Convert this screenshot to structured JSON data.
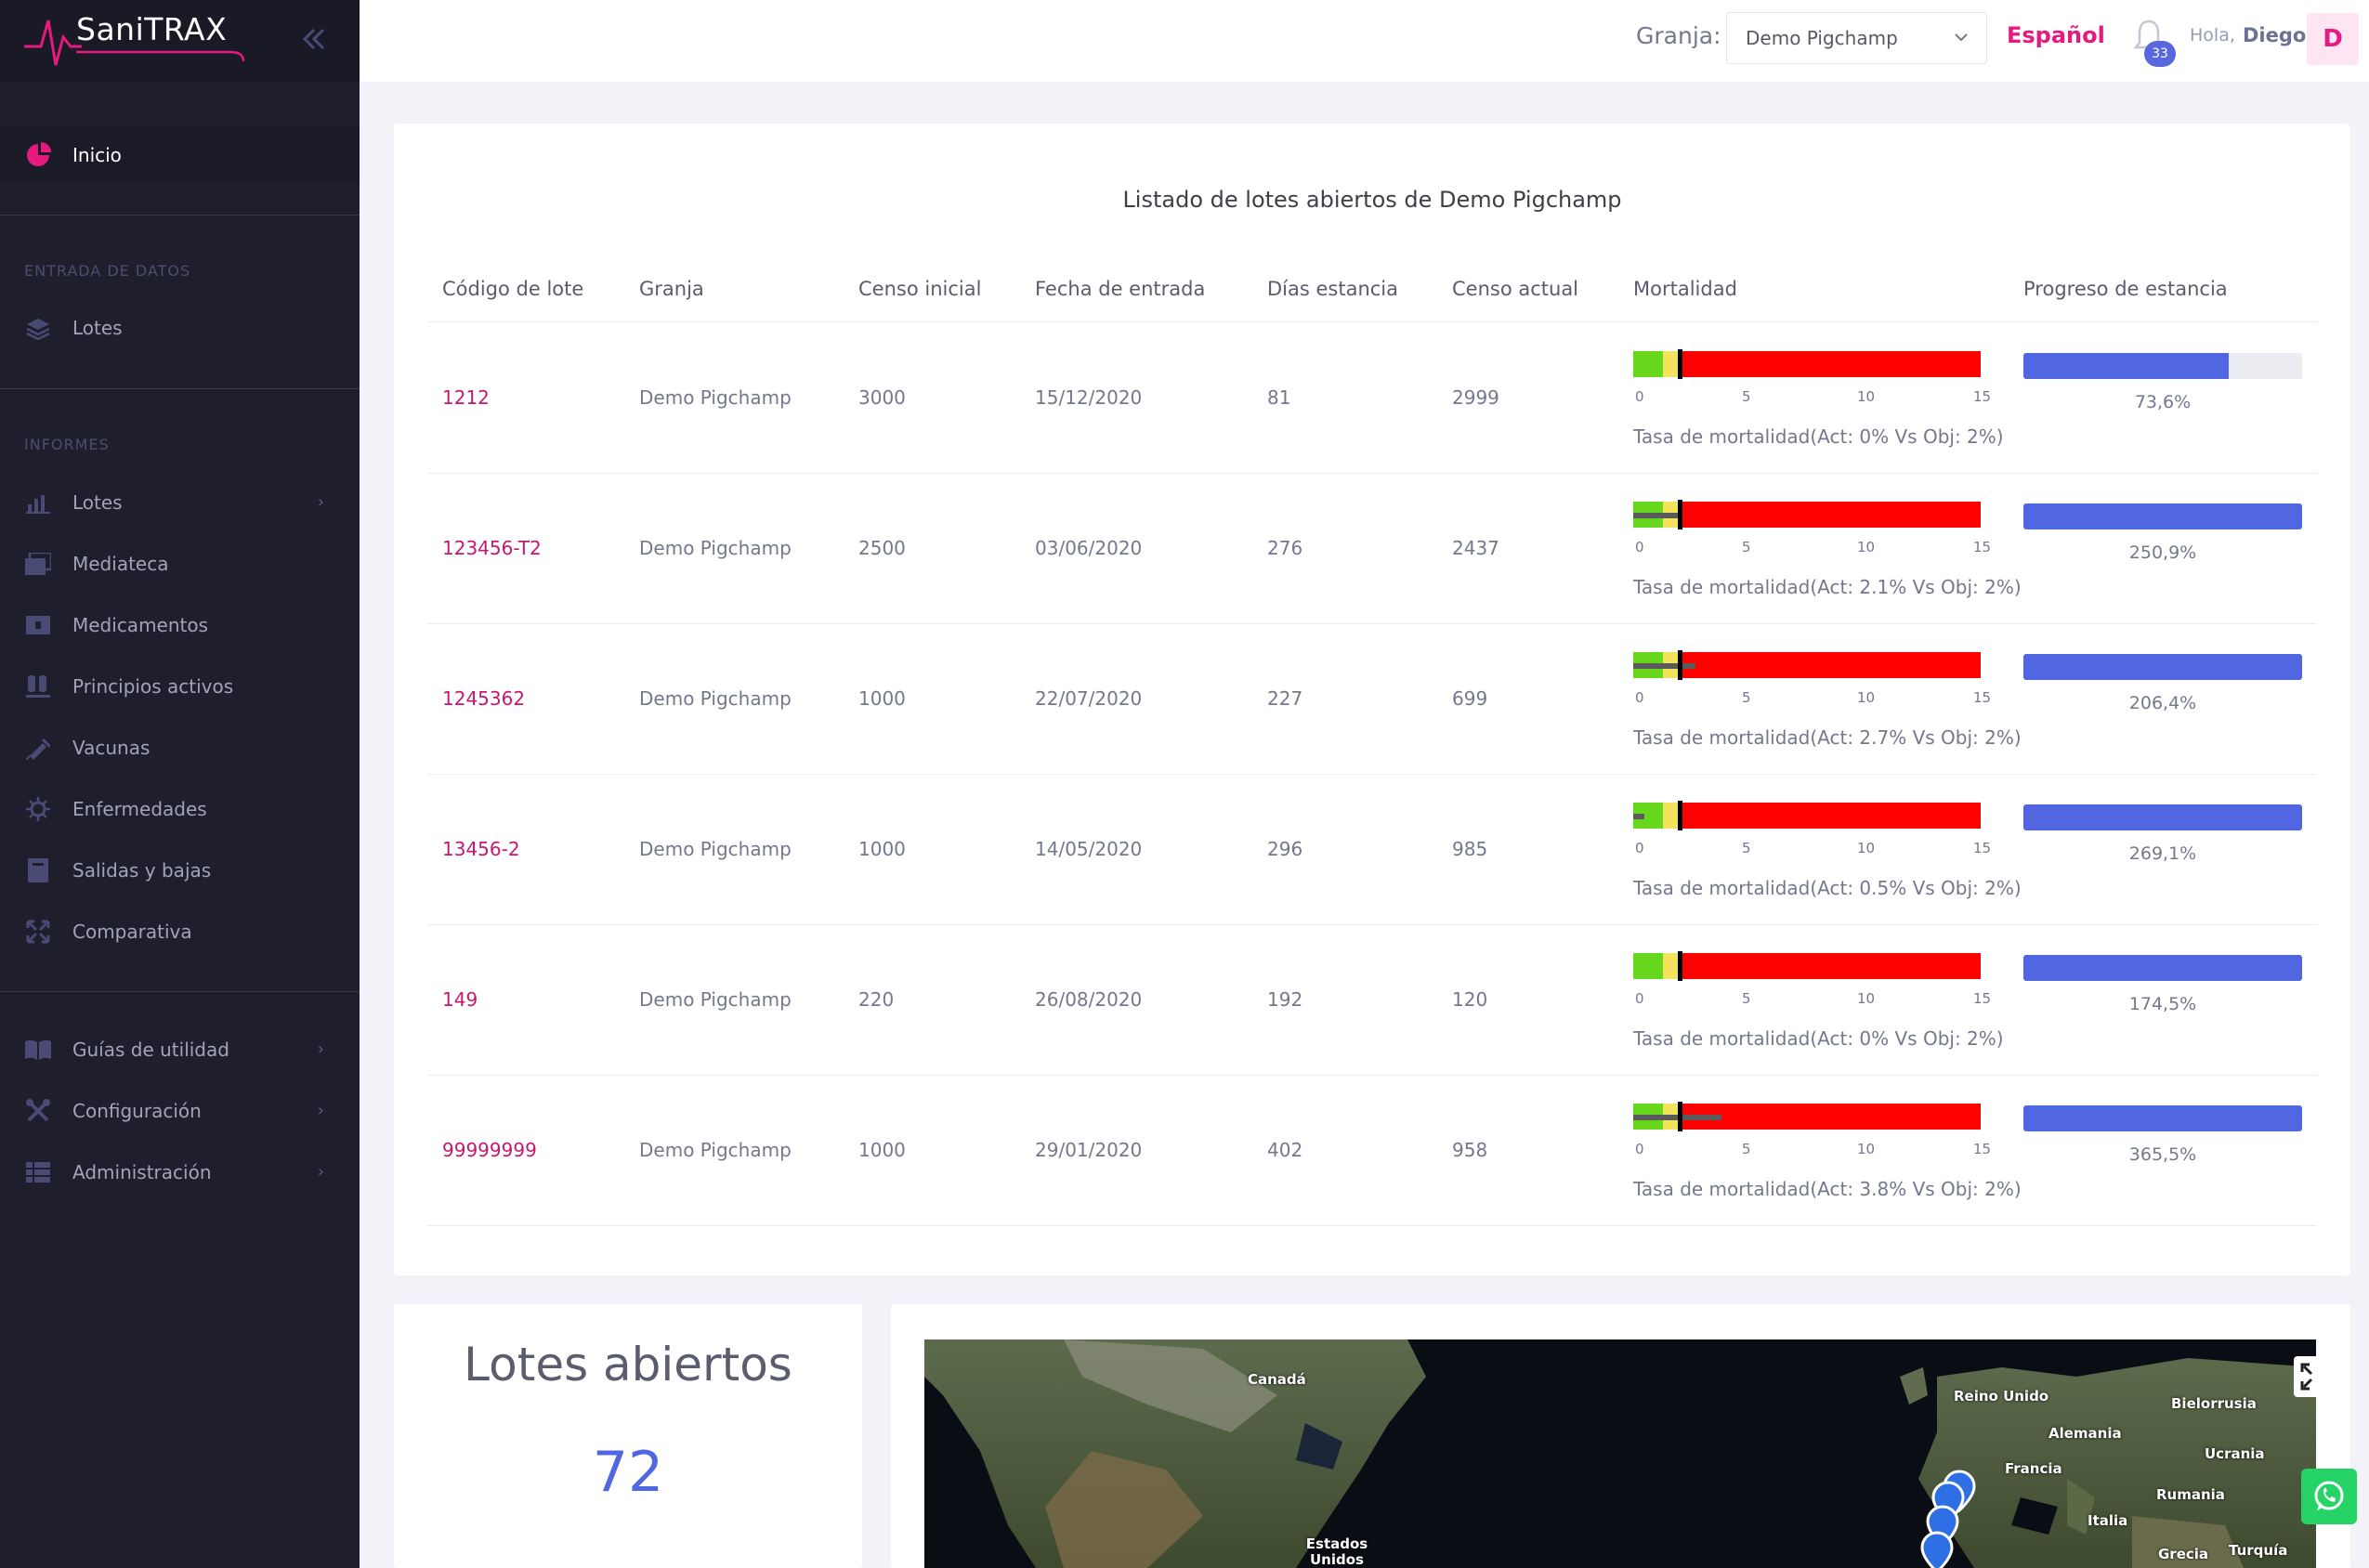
{
  "brand": {
    "name": "SaniTRAX"
  },
  "sidebar": {
    "home": {
      "label": "Inicio"
    },
    "section_data_entry": "ENTRADA DE DATOS",
    "data_entry_items": [
      {
        "label": "Lotes",
        "icon": "layers-icon"
      }
    ],
    "section_reports": "INFORMES",
    "report_items": [
      {
        "label": "Lotes",
        "icon": "bar-chart-icon",
        "has_submenu": true
      },
      {
        "label": "Mediateca",
        "icon": "media-library-icon"
      },
      {
        "label": "Medicamentos",
        "icon": "medicine-icon"
      },
      {
        "label": "Principios activos",
        "icon": "test-tubes-icon"
      },
      {
        "label": "Vacunas",
        "icon": "syringe-icon"
      },
      {
        "label": "Enfermedades",
        "icon": "virus-icon"
      },
      {
        "label": "Salidas y bajas",
        "icon": "book-icon"
      },
      {
        "label": "Comparativa",
        "icon": "compare-arrows-icon"
      }
    ],
    "bottom_items": [
      {
        "label": "Guías de utilidad",
        "icon": "open-book-icon",
        "has_submenu": true
      },
      {
        "label": "Configuración",
        "icon": "tools-icon",
        "has_submenu": true
      },
      {
        "label": "Administración",
        "icon": "grid-list-icon",
        "has_submenu": true
      }
    ]
  },
  "header": {
    "farm_label": "Granja:",
    "farm_selected": "Demo Pigchamp",
    "language": "Español",
    "notifications_count": "33",
    "greeting": "Hola,",
    "user_name": "Diego",
    "avatar_initial": "D"
  },
  "lots_table": {
    "title": "Listado de lotes abiertos de Demo Pigchamp",
    "columns": [
      "Código de lote",
      "Granja",
      "Censo inicial",
      "Fecha de entrada",
      "Días estancia",
      "Censo actual",
      "Mortalidad",
      "Progreso de estancia"
    ],
    "mortality_ticks": [
      "0",
      "5",
      "10",
      "15"
    ],
    "mortality_scale_max": 15,
    "mortality_target_percent": 2,
    "rows": [
      {
        "code": "1212",
        "farm": "Demo Pigchamp",
        "initial": "3000",
        "entry_date": "15/12/2020",
        "days": "81",
        "current": "2999",
        "mortality_actual": 0,
        "mortality_text": "Tasa de mortalidad(Act: 0% Vs Obj: 2%)",
        "progress": 73.6,
        "progress_label": "73,6%"
      },
      {
        "code": "123456-T2",
        "farm": "Demo Pigchamp",
        "initial": "2500",
        "entry_date": "03/06/2020",
        "days": "276",
        "current": "2437",
        "mortality_actual": 2.1,
        "mortality_text": "Tasa de mortalidad(Act: 2.1% Vs Obj: 2%)",
        "progress": 250.9,
        "progress_label": "250,9%"
      },
      {
        "code": "1245362",
        "farm": "Demo Pigchamp",
        "initial": "1000",
        "entry_date": "22/07/2020",
        "days": "227",
        "current": "699",
        "mortality_actual": 2.7,
        "mortality_text": "Tasa de mortalidad(Act: 2.7% Vs Obj: 2%)",
        "progress": 206.4,
        "progress_label": "206,4%"
      },
      {
        "code": "13456-2",
        "farm": "Demo Pigchamp",
        "initial": "1000",
        "entry_date": "14/05/2020",
        "days": "296",
        "current": "985",
        "mortality_actual": 0.5,
        "mortality_text": "Tasa de mortalidad(Act: 0.5% Vs Obj: 2%)",
        "progress": 269.1,
        "progress_label": "269,1%"
      },
      {
        "code": "149",
        "farm": "Demo Pigchamp",
        "initial": "220",
        "entry_date": "26/08/2020",
        "days": "192",
        "current": "120",
        "mortality_actual": 0,
        "mortality_text": "Tasa de mortalidad(Act: 0% Vs Obj: 2%)",
        "progress": 174.5,
        "progress_label": "174,5%"
      },
      {
        "code": "99999999",
        "farm": "Demo Pigchamp",
        "initial": "1000",
        "entry_date": "29/01/2020",
        "days": "402",
        "current": "958",
        "mortality_actual": 3.8,
        "mortality_text": "Tasa de mortalidad(Act: 3.8% Vs Obj: 2%)",
        "progress": 365.5,
        "progress_label": "365,5%"
      }
    ]
  },
  "open_lots": {
    "title": "Lotes abiertos",
    "value": "72"
  },
  "map": {
    "labels": [
      "Canadá",
      "Estados Unidos",
      "Reino Unido",
      "Alemania",
      "Francia",
      "Italia",
      "Bielorrusia",
      "Ucrania",
      "Rumania",
      "Grecia",
      "Turquía"
    ]
  },
  "colors": {
    "accent": "#e6197e",
    "primary": "#5167e2",
    "sidebar_bg": "#1e1e2d",
    "mortality_good": "#66d71c",
    "mortality_warn": "#f3e25c",
    "mortality_bad": "#ff0000"
  }
}
